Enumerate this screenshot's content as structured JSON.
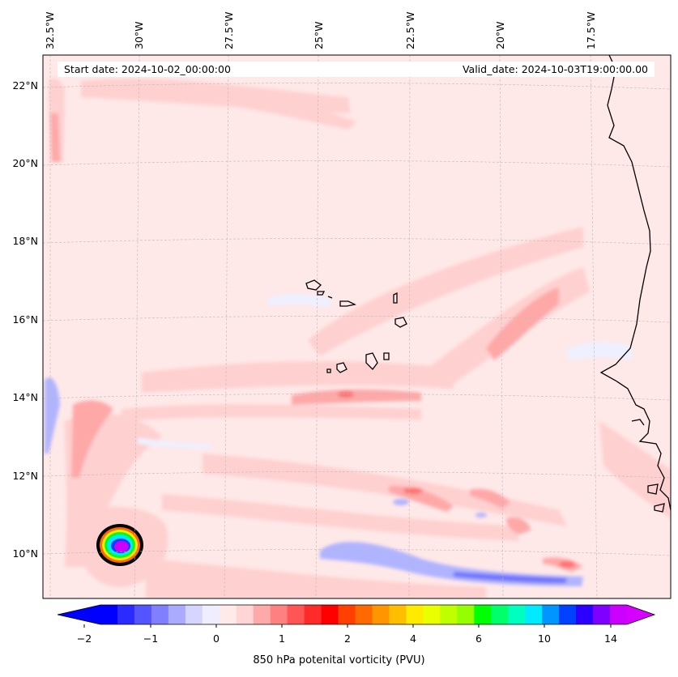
{
  "map": {
    "start_date": "Start date: 2024-10-02_00:00:00",
    "valid_date": "Valid_date: 2024-10-03T19:00:00.00",
    "lon_labels": [
      "32.5°W",
      "30°W",
      "27.5°W",
      "25°W",
      "22.5°W",
      "20°W",
      "17.5°W"
    ],
    "lat_labels": [
      "22°N",
      "20°N",
      "18°N",
      "16°N",
      "14°N",
      "12°N",
      "10°N"
    ]
  },
  "colorbar": {
    "title": "850 hPa potenital vorticity (PVU)",
    "tick_labels": [
      "−2",
      "−1",
      "0",
      "1",
      "2",
      "4",
      "6",
      "10",
      "14"
    ],
    "colors": [
      "#0000ff",
      "#2b2bff",
      "#5555ff",
      "#8080ff",
      "#aaaaff",
      "#d5d5ff",
      "#eeeeff",
      "#ffeaea",
      "#ffd5d5",
      "#ffaaaa",
      "#ff8080",
      "#ff5555",
      "#ff2b2b",
      "#ff0000",
      "#ff4000",
      "#ff6a00",
      "#ff9500",
      "#ffbf00",
      "#ffea00",
      "#eaff00",
      "#bfff00",
      "#95ff00",
      "#00ff00",
      "#00ff6a",
      "#00ffbf",
      "#00eaff",
      "#0095ff",
      "#0040ff",
      "#2b00ff",
      "#8000ff",
      "#cc00ff"
    ],
    "extend_low_color": "#0000ff",
    "extend_high_color": "#d500ff"
  },
  "style": {
    "background_field": "#ffe8e8",
    "weak_positive": "#ffd0d0",
    "moderate_positive": "#ffa8a8",
    "weak_negative": "#eef0ff",
    "moderate_negative": "#b0b4ff",
    "strong_negative": "#7070ff",
    "coast_color": "#000000"
  }
}
